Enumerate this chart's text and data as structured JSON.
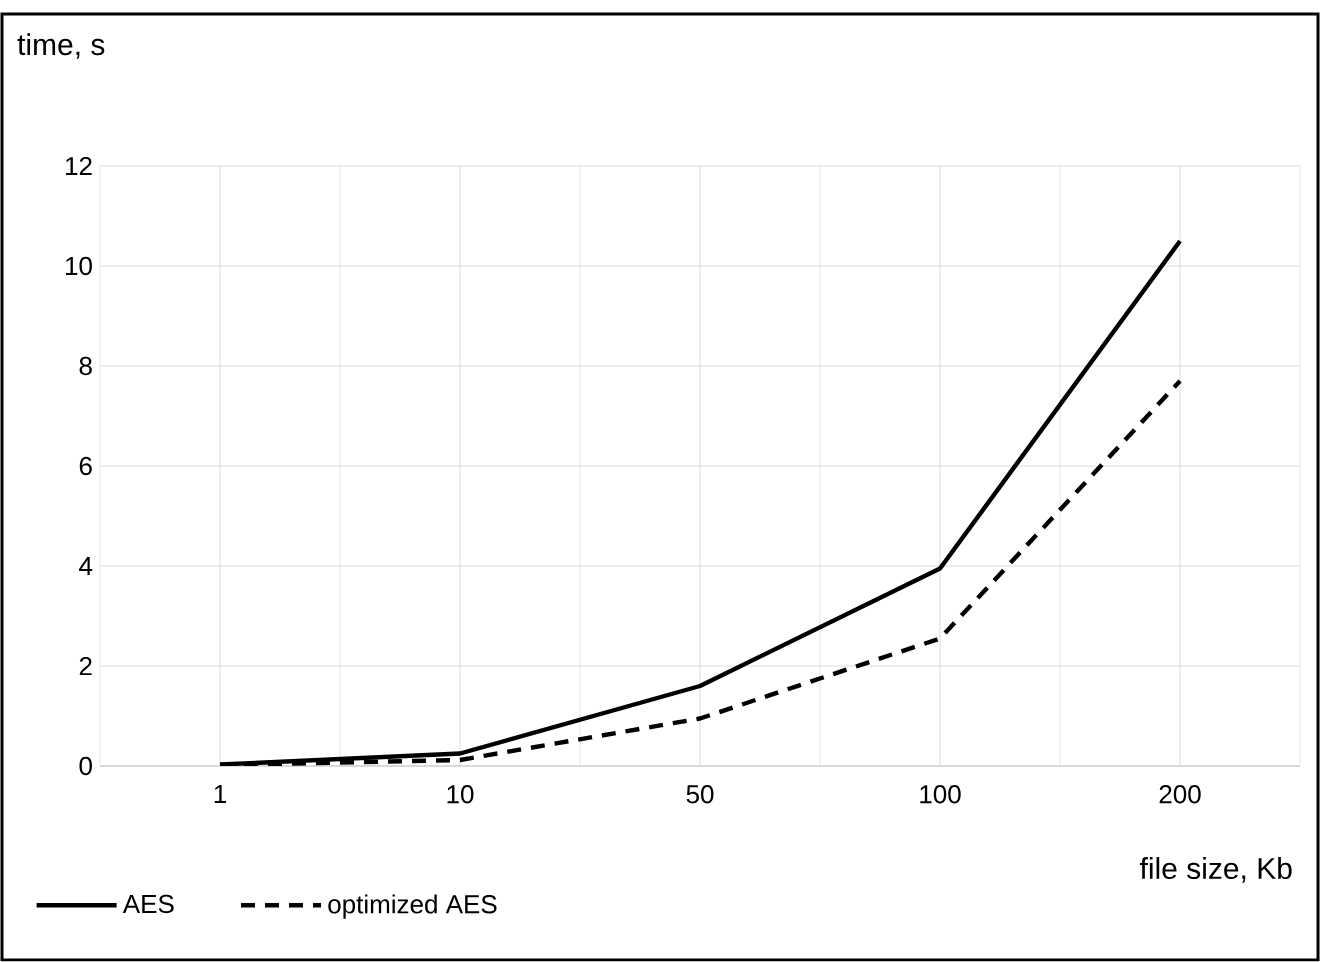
{
  "chart_data": {
    "type": "line",
    "xlabel": "file size, Kb",
    "ylabel": "time, s",
    "categories": [
      "1",
      "10",
      "50",
      "100",
      "200"
    ],
    "series": [
      {
        "name": "AES",
        "color": "#000000",
        "values": [
          0.03,
          0.25,
          1.6,
          3.95,
          10.5
        ],
        "line_style": "solid"
      },
      {
        "name": "optimized AES",
        "color": "#000000",
        "values": [
          0.02,
          0.12,
          0.95,
          2.55,
          7.7
        ],
        "line_style": "dashed"
      }
    ],
    "ylim": [
      0,
      12
    ],
    "yticks": [
      0,
      2,
      4,
      6,
      8,
      10,
      12
    ],
    "grid": true,
    "legend": "bottom",
    "marker": "none"
  }
}
